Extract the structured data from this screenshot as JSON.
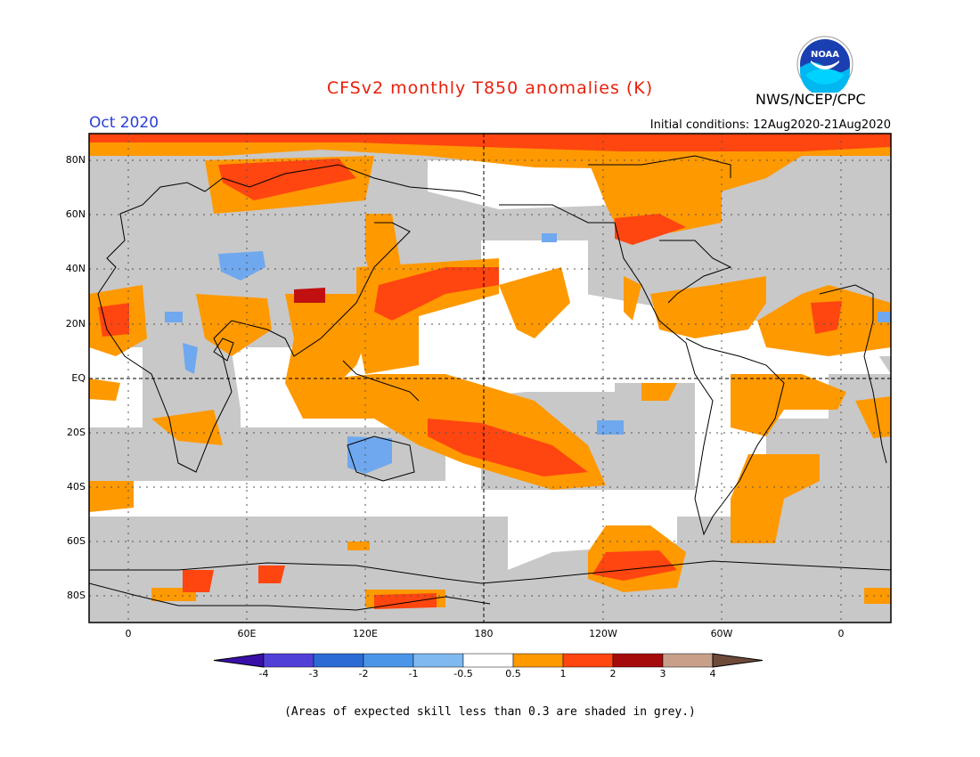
{
  "header": {
    "title": "CFSv2 monthly T850 anomalies (K)",
    "valid_month": "Oct 2020",
    "initial_conditions": "Initial conditions: 12Aug2020-21Aug2020",
    "agency": "NWS/NCEP/CPC",
    "logo_text": "NOAA"
  },
  "map": {
    "lat_labels": [
      "80N",
      "60N",
      "40N",
      "20N",
      "EQ",
      "20S",
      "40S",
      "60S",
      "80S"
    ],
    "lon_labels": [
      "0",
      "60E",
      "120E",
      "180",
      "120W",
      "60W",
      "0"
    ]
  },
  "colorbar": {
    "labels": [
      "-4",
      "-3",
      "-2",
      "-1",
      "-0.5",
      "0.5",
      "1",
      "2",
      "3",
      "4"
    ],
    "colors": [
      "#3a0fa8",
      "#5140d8",
      "#2b6bd6",
      "#4a95e8",
      "#7fb9f0",
      "#ffffff",
      "#ff9900",
      "#ff4510",
      "#a60b0b",
      "#c8a08a",
      "#6e4a3a"
    ]
  },
  "colors": {
    "grey_skill": "#c8c8c8",
    "warm_weak": "#ff9900",
    "warm_strong": "#ff4510",
    "warm_extreme": "#c01010",
    "cool_weak": "#6fa8ee",
    "cool_mid": "#4a8ee6"
  },
  "footnote": "(Areas of expected skill less than 0.3 are shaded in grey.)"
}
